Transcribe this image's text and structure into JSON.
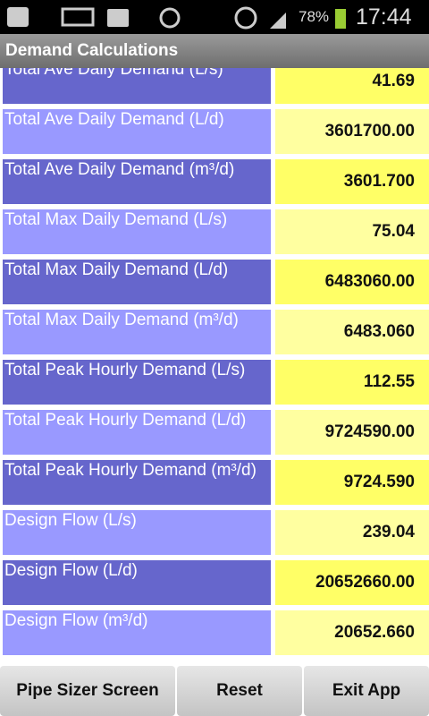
{
  "status_bar": {
    "battery": "78%",
    "time": "17:44"
  },
  "header": {
    "title": "Demand Calculations"
  },
  "rows": [
    {
      "label": "Total Ave Daily Demand (L/s)",
      "value": "41.69"
    },
    {
      "label": "Total Ave Daily Demand (L/d)",
      "value": "3601700.00"
    },
    {
      "label": "Total Ave Daily Demand (m³/d)",
      "value": "3601.700"
    },
    {
      "label": "Total Max Daily Demand (L/s)",
      "value": "75.04"
    },
    {
      "label": "Total Max Daily Demand (L/d)",
      "value": "6483060.00"
    },
    {
      "label": "Total Max Daily Demand (m³/d)",
      "value": "6483.060"
    },
    {
      "label": "Total Peak Hourly Demand (L/s)",
      "value": "112.55"
    },
    {
      "label": "Total Peak Hourly Demand (L/d)",
      "value": "9724590.00"
    },
    {
      "label": "Total Peak Hourly Demand (m³/d)",
      "value": "9724.590"
    },
    {
      "label": "Design Flow (L/s)",
      "value": "239.04"
    },
    {
      "label": "Design Flow (L/d)",
      "value": "20652660.00"
    },
    {
      "label": "Design Flow (m³/d)",
      "value": "20652.660"
    }
  ],
  "buttons": [
    "Pipe Sizer Screen",
    "Reset",
    "Exit App"
  ]
}
